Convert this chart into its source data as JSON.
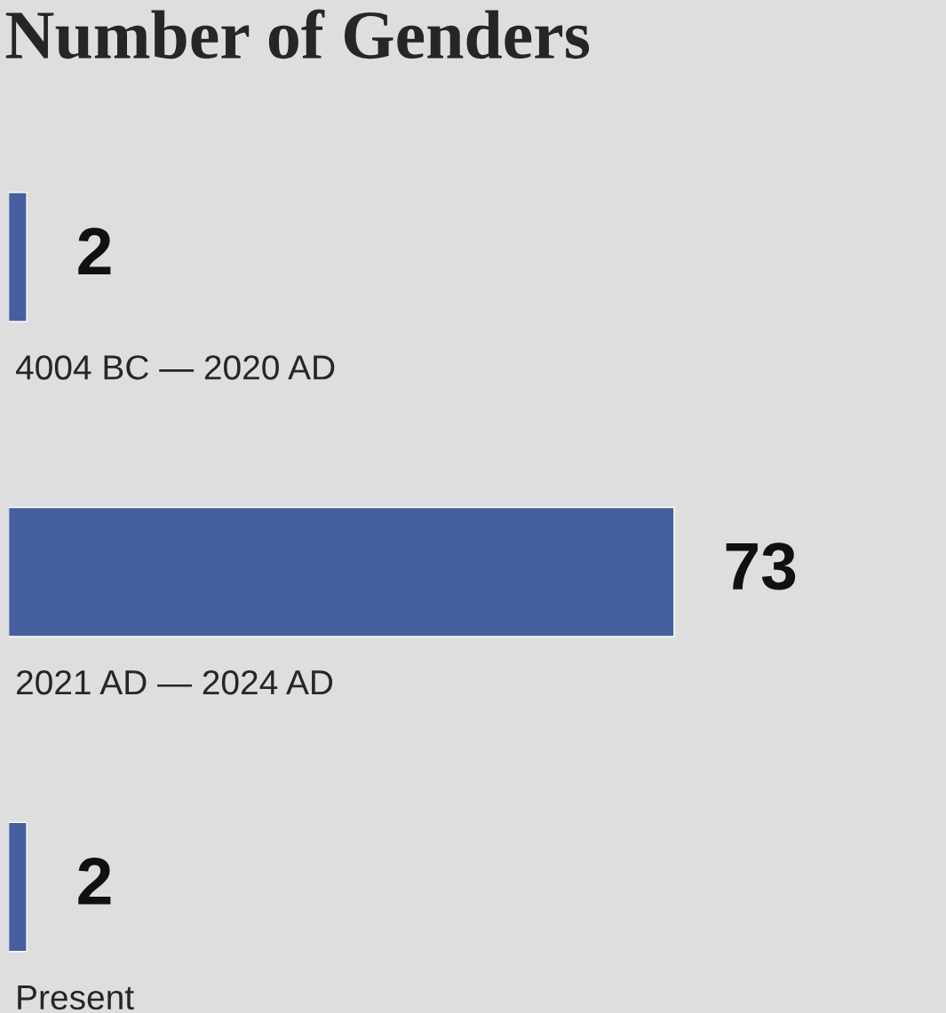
{
  "chart_data": {
    "type": "bar",
    "orientation": "horizontal",
    "title": "Number of Genders",
    "categories": [
      "4004 BC — 2020 AD",
      "2021 AD — 2024 AD",
      "Present"
    ],
    "values": [
      2,
      73,
      2
    ],
    "color": "#465f9e",
    "data_labels": true
  }
}
